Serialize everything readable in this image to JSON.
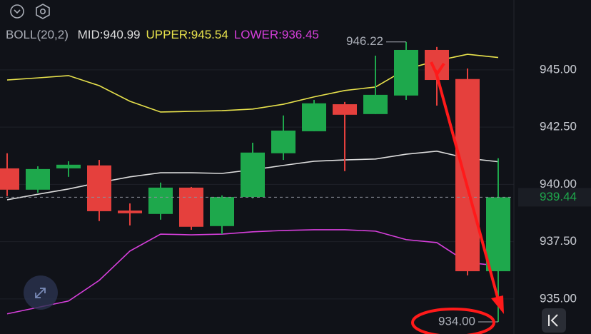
{
  "chart_data": {
    "type": "candlestick",
    "indicator": "BOLL(20,2)",
    "up_color": "#1ea84c",
    "down_color": "#e5403d",
    "candles": {
      "open": [
        940.7,
        939.77,
        940.7,
        940.83,
        938.86,
        938.71,
        939.86,
        938.18,
        939.45,
        941.36,
        942.32,
        943.5,
        943.07,
        943.88,
        945.87,
        944.6,
        936.21
      ],
      "high": [
        941.36,
        940.79,
        941.01,
        941.07,
        939.17,
        940.08,
        939.89,
        939.52,
        941.82,
        943.01,
        943.69,
        943.6,
        945.62,
        946.22,
        946.0,
        945.06,
        941.14
      ],
      "low": [
        939.49,
        939.64,
        940.33,
        938.4,
        938.21,
        938.46,
        938.02,
        937.83,
        939.39,
        941.07,
        942.32,
        940.58,
        943.07,
        943.69,
        943.44,
        936.03,
        934.0
      ],
      "close": [
        939.77,
        940.67,
        940.86,
        938.83,
        938.74,
        939.86,
        938.15,
        939.45,
        941.39,
        942.35,
        943.54,
        943.04,
        943.91,
        945.87,
        944.56,
        936.21,
        939.44
      ]
    },
    "series": [
      {
        "name": "MID:940.99",
        "color": "#dcdcdc",
        "values": [
          939.33,
          939.57,
          939.8,
          940.08,
          940.33,
          940.51,
          940.51,
          940.48,
          940.64,
          940.83,
          941.01,
          941.07,
          941.11,
          941.32,
          941.45,
          941.14,
          940.99
        ]
      },
      {
        "name": "UPPER:945.54",
        "color": "#e8e24c",
        "values": [
          944.56,
          944.65,
          944.75,
          944.31,
          943.63,
          943.16,
          943.19,
          943.22,
          943.29,
          943.5,
          943.82,
          944.1,
          944.25,
          945.03,
          945.4,
          945.68,
          945.54
        ]
      },
      {
        "name": "LOWER:936.45",
        "color": "#d73fdc",
        "values": [
          934.35,
          934.63,
          934.91,
          935.81,
          937.09,
          937.83,
          937.8,
          937.83,
          937.93,
          937.99,
          938.02,
          938.02,
          937.96,
          937.59,
          937.46,
          936.59,
          936.45
        ]
      }
    ],
    "ylim": [
      933.47,
      948.05
    ],
    "yticks": [
      {
        "value": 935,
        "label": "935.00"
      },
      {
        "value": 937.5,
        "label": "937.50"
      },
      {
        "value": 940,
        "label": "940.00"
      },
      {
        "value": 942.5,
        "label": "942.50"
      },
      {
        "value": 945,
        "label": "945.00"
      }
    ],
    "grid": true,
    "last_price": {
      "value": 939.44,
      "label": "939.44"
    },
    "high_label": {
      "value": 946.22,
      "label": "946.22"
    },
    "low_label": {
      "value": 934,
      "label": "934.00"
    }
  }
}
